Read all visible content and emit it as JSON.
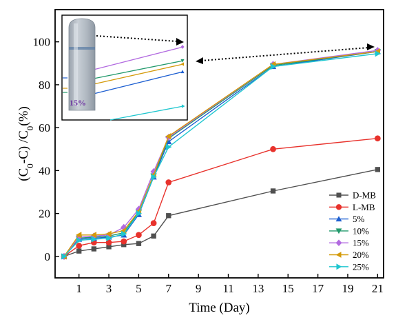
{
  "chart_data": {
    "type": "line",
    "xlabel": "Time (Day)",
    "ylabel_parts": [
      "(C",
      "0",
      "-C) /C",
      "0",
      "(%)"
    ],
    "xlim": [
      -0.6,
      21.4
    ],
    "ylim": [
      -10,
      115
    ],
    "x_ticks": [
      1,
      3,
      5,
      7,
      9,
      11,
      13,
      15,
      17,
      19,
      21
    ],
    "y_ticks": [
      0,
      20,
      40,
      60,
      80,
      100
    ],
    "legend_position": "bottom-right",
    "grid": false,
    "series": [
      {
        "name": "D-MB",
        "color": "#505050",
        "marker": "square",
        "x": [
          0,
          1,
          2,
          3,
          4,
          5,
          6,
          7,
          14,
          21
        ],
        "y": [
          0,
          2.5,
          3.5,
          4.5,
          5.5,
          6,
          9.5,
          19,
          30.5,
          40.5
        ]
      },
      {
        "name": "L-MB",
        "color": "#e8322c",
        "marker": "circle",
        "x": [
          0,
          1,
          2,
          3,
          4,
          5,
          6,
          7,
          14,
          21
        ],
        "y": [
          0,
          5,
          6.5,
          6.5,
          7,
          10,
          15.5,
          34.5,
          50,
          55
        ]
      },
      {
        "name": "5%",
        "color": "#1d5fd1",
        "marker": "triangle-up",
        "x": [
          0,
          1,
          2,
          3,
          4,
          5,
          6,
          7,
          14,
          21
        ],
        "y": [
          0,
          8,
          8.5,
          9,
          10,
          19.5,
          37,
          53.5,
          88.5,
          95.5
        ]
      },
      {
        "name": "10%",
        "color": "#229a6c",
        "marker": "triangle-down",
        "x": [
          0,
          1,
          2,
          3,
          4,
          5,
          6,
          7,
          14,
          21
        ],
        "y": [
          0,
          8.5,
          9,
          9.5,
          11,
          20.5,
          37.5,
          55,
          89,
          95.5
        ]
      },
      {
        "name": "15%",
        "color": "#b26ae0",
        "marker": "diamond",
        "x": [
          0,
          1,
          2,
          3,
          4,
          5,
          6,
          7,
          14,
          21
        ],
        "y": [
          0,
          9,
          9.5,
          10,
          13.5,
          22,
          39.5,
          55.5,
          89.5,
          96
        ]
      },
      {
        "name": "20%",
        "color": "#d49a0a",
        "marker": "triangle-left",
        "x": [
          0,
          1,
          2,
          3,
          4,
          5,
          6,
          7,
          14,
          21
        ],
        "y": [
          0,
          10,
          10,
          10.5,
          12,
          21,
          38,
          56,
          89.5,
          95.5
        ]
      },
      {
        "name": "25%",
        "color": "#1ec6cf",
        "marker": "triangle-right",
        "x": [
          0,
          1,
          2,
          3,
          4,
          5,
          6,
          7,
          14,
          21
        ],
        "y": [
          0,
          7.5,
          8,
          8.5,
          10.5,
          20,
          37,
          51,
          88.5,
          94.5
        ]
      }
    ]
  },
  "inset": {
    "label": "15%"
  }
}
